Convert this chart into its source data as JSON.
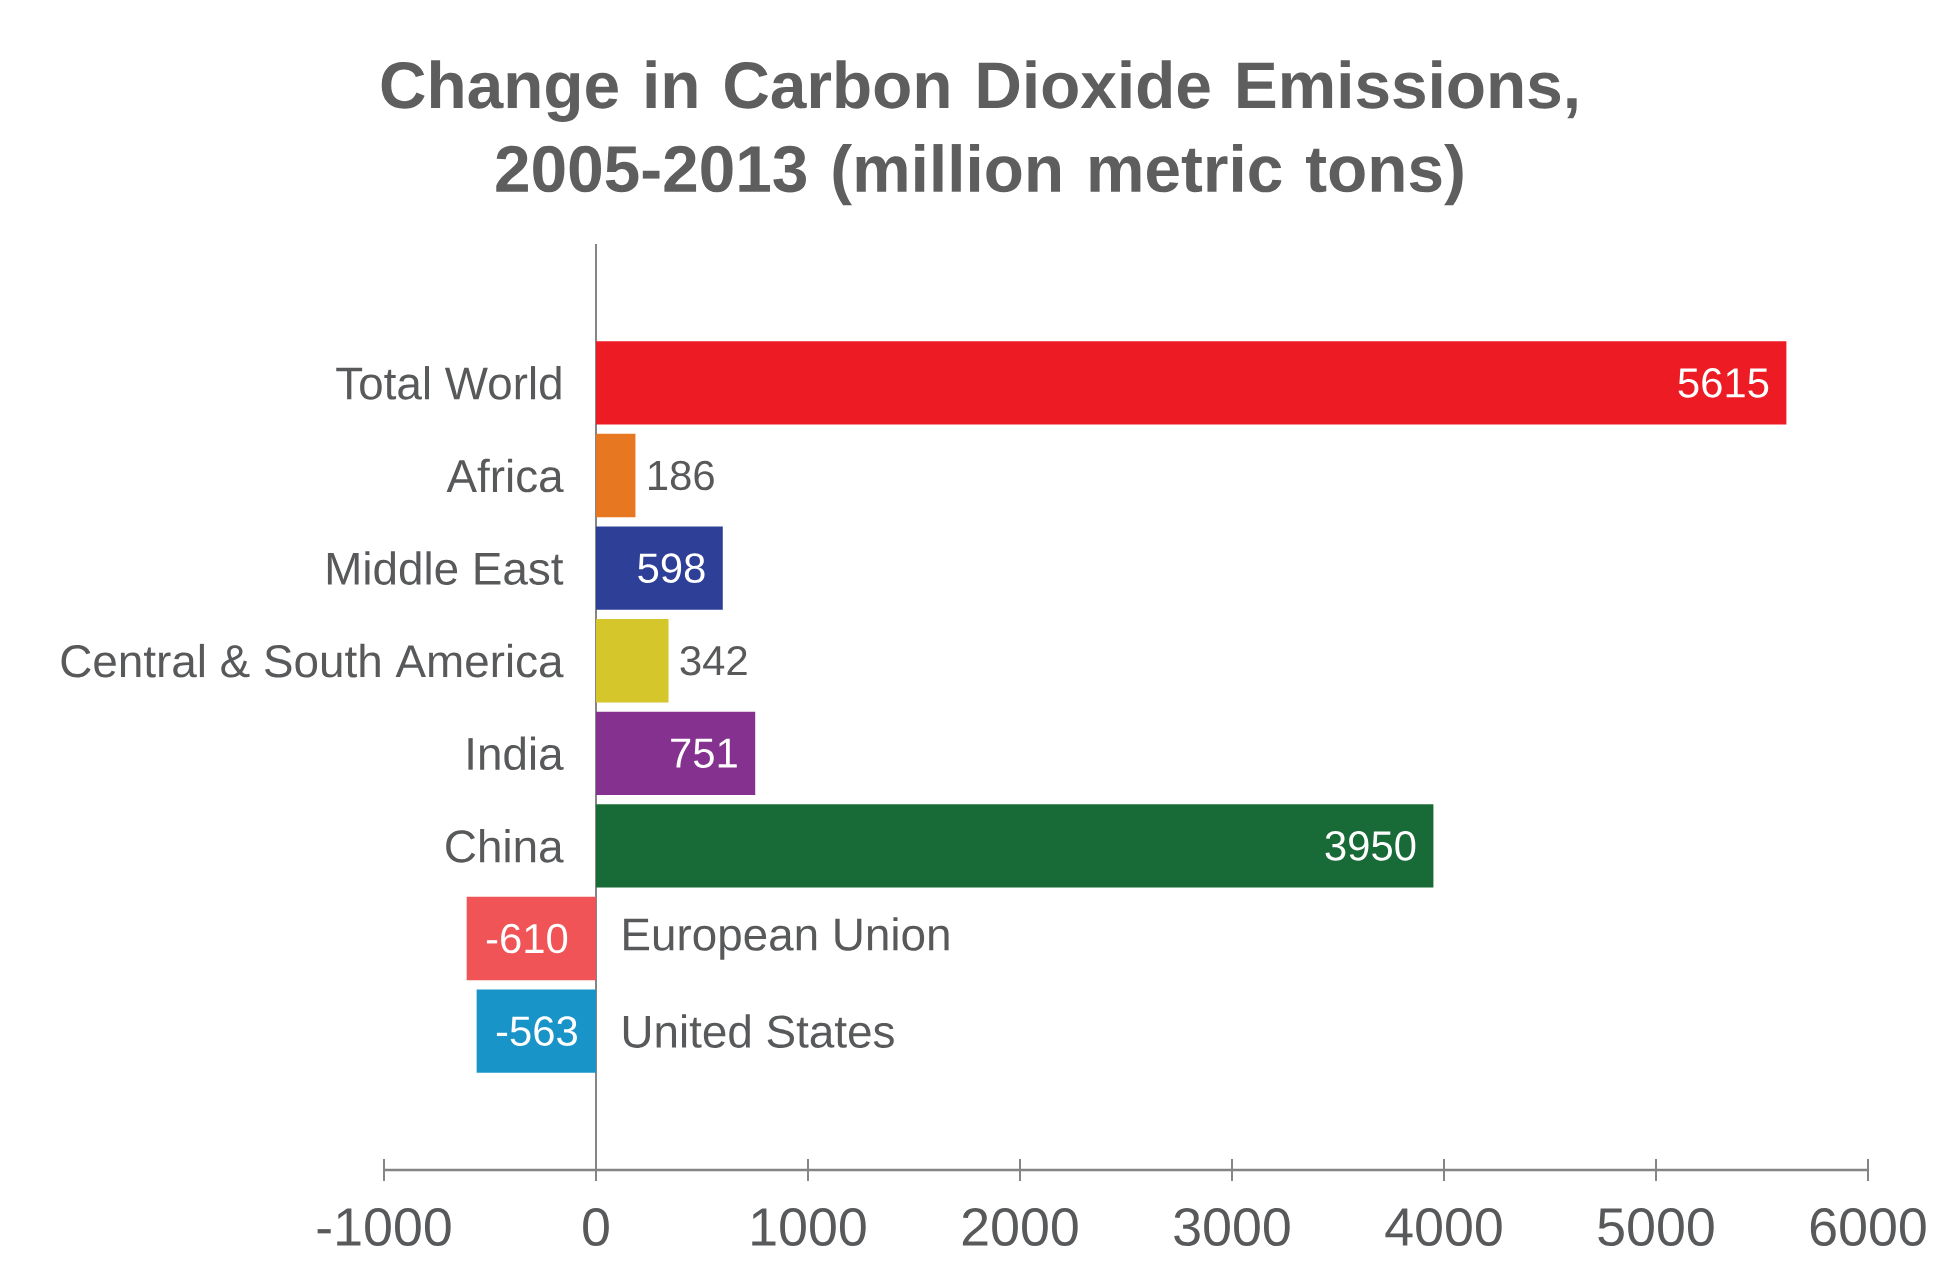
{
  "chart_data": {
    "type": "bar",
    "orientation": "horizontal",
    "title": "Change in Carbon Dioxide Emissions, 2005-2013 (million metric tons)",
    "categories": [
      "Total World",
      "Africa",
      "Middle East",
      "Central & South America",
      "India",
      "China",
      "European Union",
      "United States"
    ],
    "values": [
      5615,
      186,
      598,
      342,
      751,
      3950,
      -610,
      -563
    ],
    "colors": [
      "#ed1c24",
      "#e87722",
      "#2e3f97",
      "#d4c62b",
      "#84318f",
      "#186a37",
      "#f05456",
      "#1894c8"
    ],
    "xlim": [
      -1000,
      6000
    ],
    "xticks": [
      -1000,
      0,
      1000,
      2000,
      3000,
      4000,
      5000,
      6000
    ],
    "data_labels": true
  }
}
